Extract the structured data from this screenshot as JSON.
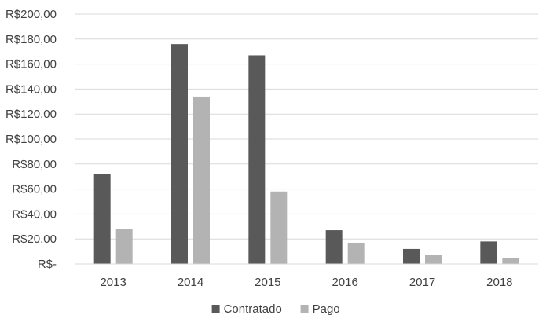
{
  "chart_data": {
    "type": "bar",
    "title": "",
    "xlabel": "",
    "ylabel": "",
    "categories": [
      "2013",
      "2014",
      "2015",
      "2016",
      "2017",
      "2018"
    ],
    "series": [
      {
        "name": "Contratado",
        "color": "#595959",
        "values": [
          72,
          176,
          167,
          27,
          12,
          18
        ]
      },
      {
        "name": "Pago",
        "color": "#b3b3b3",
        "values": [
          28,
          134,
          58,
          17,
          7,
          5
        ]
      }
    ],
    "ylim": [
      0,
      200
    ],
    "ytick_labels": [
      "R$-",
      "R$20,00",
      "R$40,00",
      "R$60,00",
      "R$80,00",
      "R$100,00",
      "R$120,00",
      "R$140,00",
      "R$160,00",
      "R$180,00",
      "R$200,00"
    ],
    "ytick_values": [
      0,
      20,
      40,
      60,
      80,
      100,
      120,
      140,
      160,
      180,
      200
    ],
    "grid": true,
    "legend_position": "bottom-center",
    "colors": {
      "gridline": "#d9d9d9",
      "axis_text": "#404040"
    }
  }
}
